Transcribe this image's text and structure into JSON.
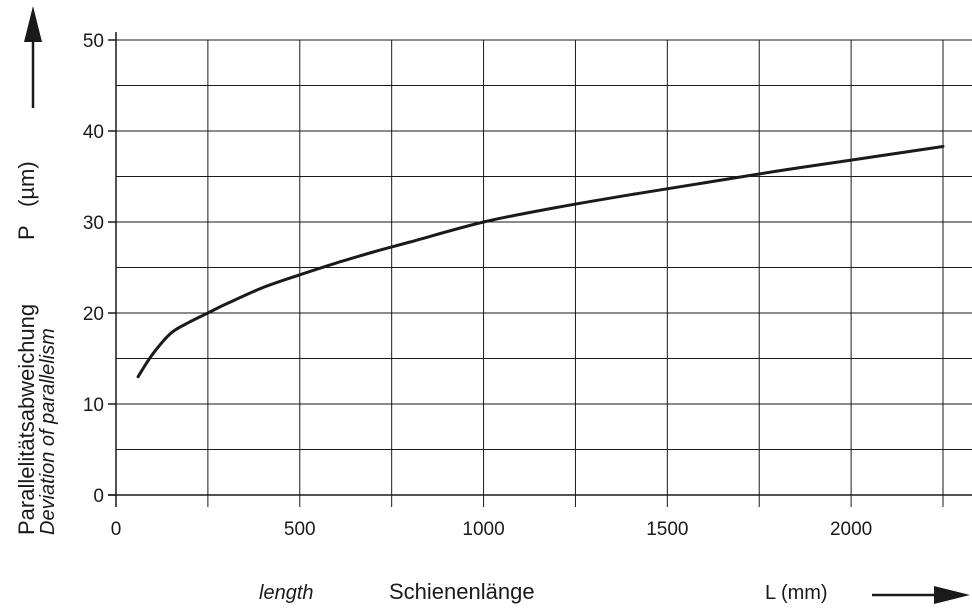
{
  "chart_data": {
    "type": "line",
    "title": "",
    "x_axis": {
      "label_de": "Schienenlänge",
      "label_en": "length",
      "symbol_unit": "L (mm)",
      "range": [
        0,
        2250
      ],
      "ticks": [
        0,
        500,
        1000,
        1500,
        2000
      ],
      "tick_labels": [
        "0",
        "500",
        "1000",
        "1500",
        "2000"
      ],
      "minor_step": 250
    },
    "y_axis": {
      "label_de": "Parallelitätsabweichung",
      "label_en": "Deviation of parallelism",
      "symbol": "P",
      "unit": "(µm)",
      "range": [
        0,
        50
      ],
      "ticks": [
        0,
        10,
        20,
        30,
        40,
        50
      ],
      "tick_labels": [
        "0",
        "10",
        "20",
        "30",
        "40",
        "50"
      ],
      "minor_step": 5
    },
    "grid": true,
    "series": [
      {
        "x": [
          60,
          100,
          150,
          200,
          250,
          300,
          400,
          500,
          600,
          700,
          800,
          1000,
          1200,
          1400,
          1600,
          1800,
          2000,
          2250
        ],
        "y": [
          13.0,
          15.5,
          17.8,
          19.0,
          20.0,
          21.0,
          22.8,
          24.2,
          25.5,
          26.7,
          27.8,
          30.0,
          31.6,
          33.0,
          34.3,
          35.6,
          36.8,
          38.3
        ]
      }
    ],
    "colors": {
      "line": "#1a1a1a",
      "grid": "#1a1a1a"
    }
  }
}
